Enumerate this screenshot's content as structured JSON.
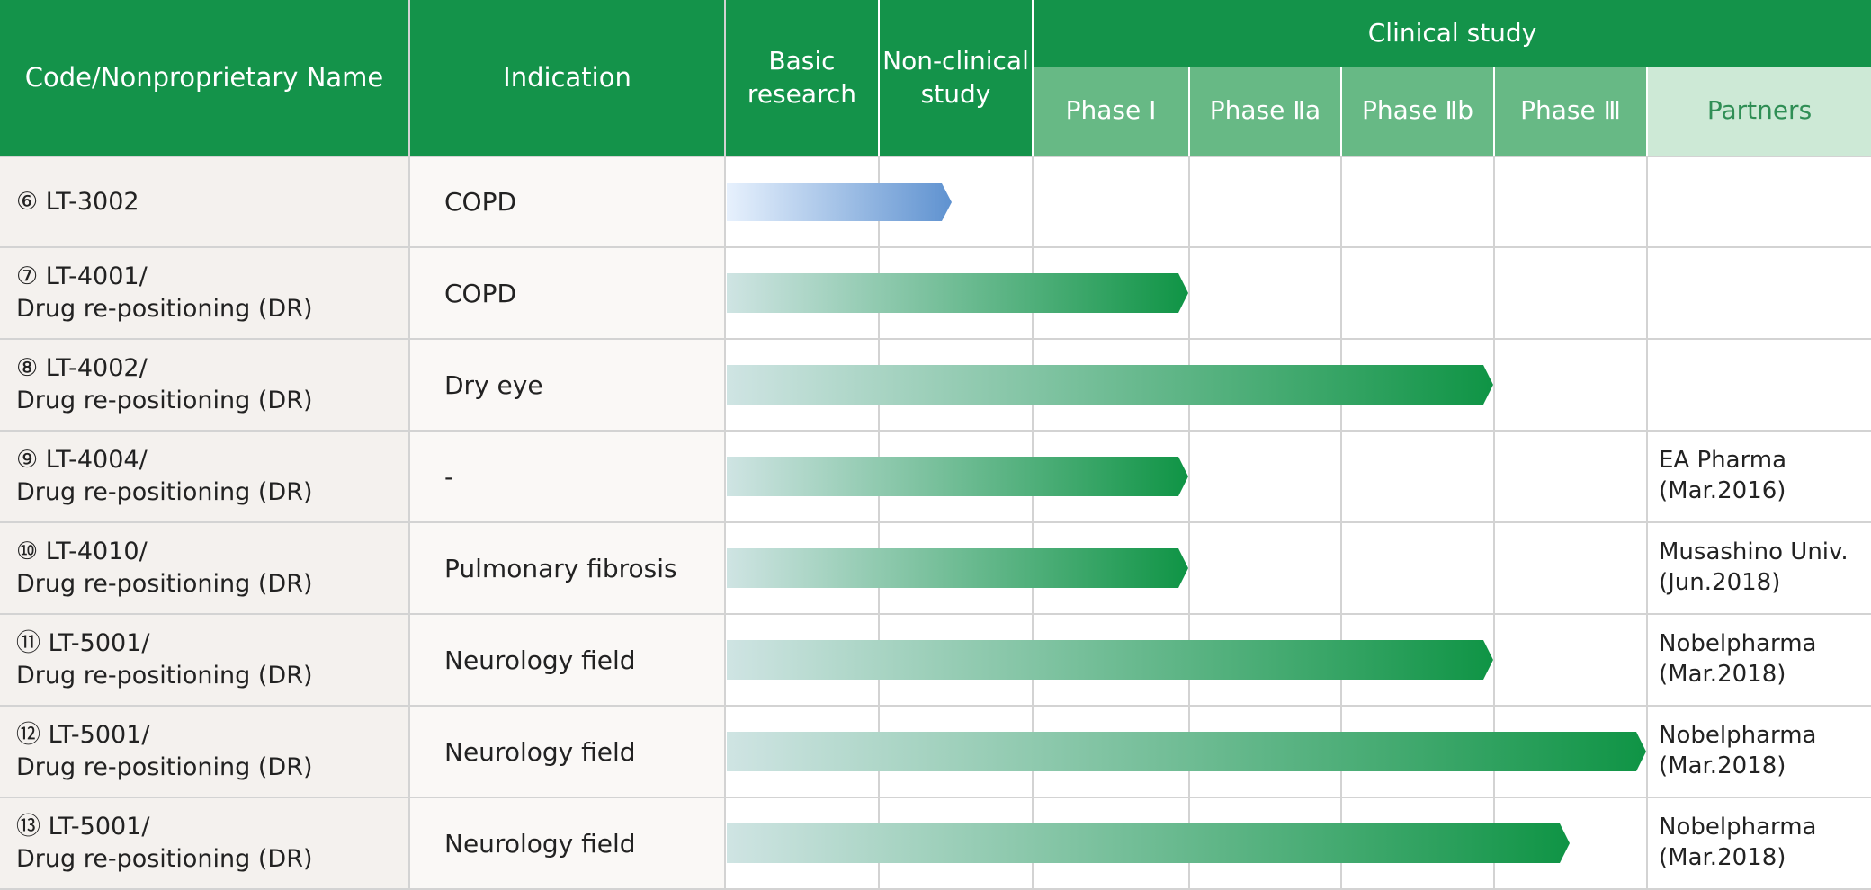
{
  "headers": {
    "code_name": "Code/Nonproprietary Name",
    "indication": "Indication",
    "basic_research": [
      "Basic",
      "research"
    ],
    "non_clinical": [
      "Non-clinical",
      "study"
    ],
    "clinical_study": "Clinical study",
    "phase1": "Phase Ⅰ",
    "phase2a": "Phase Ⅱa",
    "phase2b": "Phase Ⅱb",
    "phase3": "Phase Ⅲ",
    "partners": "Partners"
  },
  "stages": [
    "Basic research",
    "Non-clinical study",
    "Phase I",
    "Phase IIa",
    "Phase IIb",
    "Phase III"
  ],
  "rows": [
    {
      "code": "⑥ LT-3002",
      "note": "",
      "indication": "COPD",
      "partner": "",
      "partner_date": "",
      "progress": 1.5,
      "style": "blue"
    },
    {
      "code": "⑦ LT-4001/",
      "note": "Drug re-positioning (DR)",
      "indication": "COPD",
      "partner": "",
      "partner_date": "",
      "progress": 3,
      "style": "green"
    },
    {
      "code": "⑧ LT-4002/",
      "note": "Drug re-positioning (DR)",
      "indication": "Dry eye",
      "partner": "",
      "partner_date": "",
      "progress": 5,
      "style": "green"
    },
    {
      "code": "⑨ LT-4004/",
      "note": "Drug re-positioning (DR)",
      "indication": "-",
      "partner": "EA Pharma",
      "partner_date": "(Mar.2016)",
      "progress": 3,
      "style": "green"
    },
    {
      "code": "⑩ LT-4010/",
      "note": "Drug re-positioning (DR)",
      "indication": "Pulmonary fibrosis",
      "partner": "Musashino Univ.",
      "partner_date": "(Jun.2018)",
      "progress": 3,
      "style": "green"
    },
    {
      "code": "⑪ LT-5001/",
      "note": "Drug re-positioning (DR)",
      "indication": "Neurology field",
      "partner": "Nobelpharma",
      "partner_date": "(Mar.2018)",
      "progress": 5,
      "style": "green"
    },
    {
      "code": "⑫ LT-5001/",
      "note": "Drug re-positioning (DR)",
      "indication": "Neurology field",
      "partner": "Nobelpharma",
      "partner_date": "(Mar.2018)",
      "progress": 6,
      "style": "green"
    },
    {
      "code": "⑬ LT-5001/",
      "note": "Drug re-positioning (DR)",
      "indication": "Neurology field",
      "partner": "Nobelpharma",
      "partner_date": "(Mar.2018)",
      "progress": 5.5,
      "style": "green"
    }
  ],
  "colors": {
    "header_dark": "#14934a",
    "header_mid": "#67b985",
    "header_light": "#cde9d6",
    "bar_green_start": "#cfe4e3",
    "bar_green_end": "#0f9445",
    "bar_blue_start": "#e7f1fd",
    "bar_blue_end": "#5f92d0"
  }
}
